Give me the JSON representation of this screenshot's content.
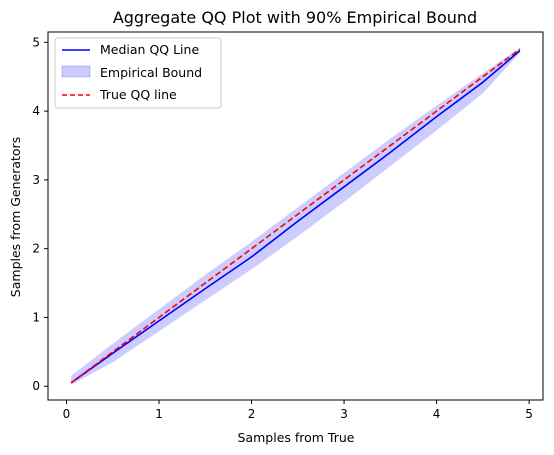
{
  "chart_data": {
    "type": "line",
    "title": "Aggregate QQ Plot with 90% Empirical Bound",
    "xlabel": "Samples from True",
    "ylabel": "Samples from Generators",
    "xlim": [
      -0.2,
      5.15
    ],
    "ylim": [
      -0.2,
      5.15
    ],
    "xticks": [
      0,
      1,
      2,
      3,
      4,
      5
    ],
    "yticks": [
      0,
      1,
      2,
      3,
      4,
      5
    ],
    "grid": false,
    "legend_position": "top-left",
    "series": [
      {
        "name": "Median QQ Line",
        "kind": "line",
        "color": "#0000ff",
        "x": [
          0.05,
          0.5,
          1.0,
          1.5,
          2.0,
          2.5,
          3.0,
          3.5,
          4.0,
          4.5,
          4.9
        ],
        "y": [
          0.05,
          0.48,
          0.95,
          1.42,
          1.88,
          2.4,
          2.9,
          3.4,
          3.92,
          4.42,
          4.88
        ]
      },
      {
        "name": "Empirical Bound",
        "kind": "band",
        "color": "#0000ff",
        "opacity": 0.2,
        "x": [
          0.05,
          0.5,
          1.0,
          1.5,
          2.0,
          2.5,
          3.0,
          3.5,
          4.0,
          4.5,
          4.9
        ],
        "lower": [
          0.02,
          0.35,
          0.8,
          1.25,
          1.7,
          2.18,
          2.68,
          3.2,
          3.72,
          4.26,
          4.85
        ],
        "upper": [
          0.15,
          0.62,
          1.12,
          1.62,
          2.1,
          2.6,
          3.1,
          3.6,
          4.08,
          4.55,
          4.92
        ]
      },
      {
        "name": "True QQ line",
        "kind": "line",
        "dashed": true,
        "color": "#ff0000",
        "x": [
          0.05,
          4.9
        ],
        "y": [
          0.05,
          4.9
        ]
      }
    ]
  }
}
